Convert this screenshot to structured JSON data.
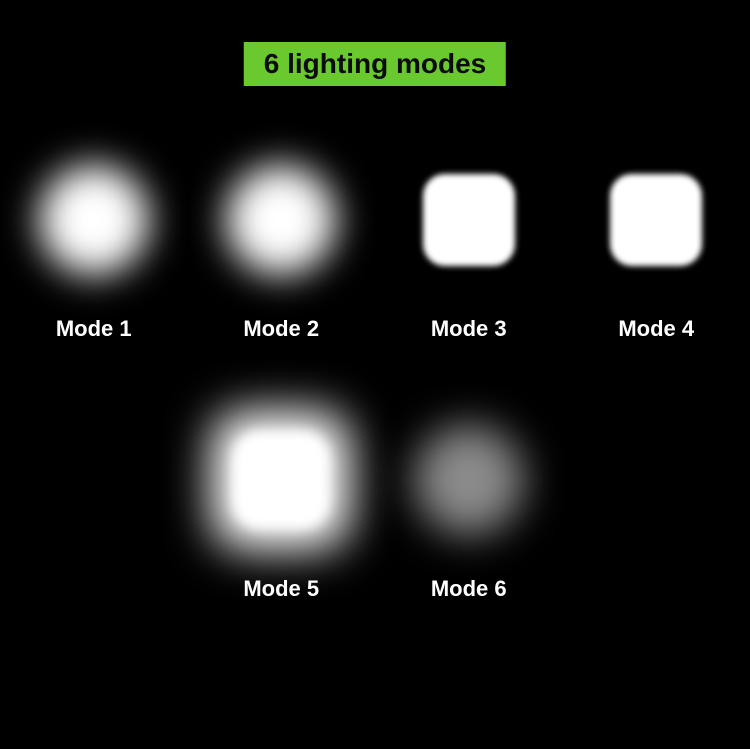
{
  "title": {
    "text": "6 lighting modes",
    "background_color": "#6ac92e",
    "text_color": "#0b0b0b",
    "fontsize": 28
  },
  "background_color": "#000000",
  "label_color": "#ffffff",
  "label_fontsize": 22,
  "modes": [
    {
      "label": "Mode 1",
      "shape": "round-blur",
      "color": "#ffffff",
      "opacity": 1.0
    },
    {
      "label": "Mode 2",
      "shape": "round-blur",
      "color": "#ffffff",
      "opacity": 1.0
    },
    {
      "label": "Mode 3",
      "shape": "square",
      "color": "#ffffff",
      "opacity": 1.0
    },
    {
      "label": "Mode 4",
      "shape": "square",
      "color": "#ffffff",
      "opacity": 1.0
    },
    {
      "label": "Mode 5",
      "shape": "big-glow",
      "color": "#ffffff",
      "opacity": 1.0
    },
    {
      "label": "Mode 6",
      "shape": "dim-round",
      "color": "#8b8b8b",
      "opacity": 1.0
    }
  ],
  "grid": {
    "columns": 4,
    "rows": 2,
    "row2_offset_cells": 1
  }
}
